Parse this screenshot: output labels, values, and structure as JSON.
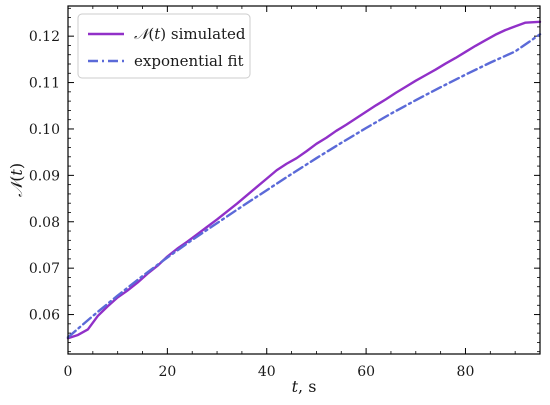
{
  "chart_data": {
    "type": "line",
    "xlabel": "t, s",
    "ylabel": "N(t)",
    "xlim": [
      0,
      95
    ],
    "ylim": [
      0.0515,
      0.1265
    ],
    "x_ticks": [
      0,
      20,
      40,
      60,
      80
    ],
    "x_tick_labels": [
      "0",
      "20",
      "40",
      "60",
      "80"
    ],
    "y_ticks": [
      0.06,
      0.07,
      0.08,
      0.09,
      0.1,
      0.11,
      0.12
    ],
    "y_tick_labels": [
      "0.06",
      "0.07",
      "0.08",
      "0.09",
      "0.10",
      "0.11",
      "0.12"
    ],
    "grid": false,
    "legend_position": "top-left",
    "series": [
      {
        "name": "N(t) simulated",
        "color": "#9130c8",
        "style": "solid",
        "x": [
          0,
          2,
          4,
          6,
          8,
          10,
          12,
          14,
          16,
          18,
          20,
          22,
          24,
          26,
          28,
          30,
          32,
          34,
          36,
          38,
          40,
          42,
          44,
          46,
          48,
          50,
          52,
          54,
          56,
          58,
          60,
          62,
          64,
          66,
          68,
          70,
          72,
          74,
          76,
          78,
          80,
          82,
          84,
          86,
          88,
          90,
          92,
          95
        ],
        "y": [
          0.0549,
          0.0556,
          0.0568,
          0.0597,
          0.0618,
          0.0637,
          0.0652,
          0.0669,
          0.0688,
          0.0705,
          0.0725,
          0.0742,
          0.0757,
          0.0773,
          0.0789,
          0.0805,
          0.0822,
          0.0839,
          0.0857,
          0.0875,
          0.0893,
          0.0911,
          0.0925,
          0.0937,
          0.0952,
          0.0968,
          0.0981,
          0.0996,
          0.1009,
          0.1023,
          0.1037,
          0.1051,
          0.1064,
          0.1078,
          0.1091,
          0.1104,
          0.1116,
          0.1128,
          0.1141,
          0.1153,
          0.1166,
          0.1179,
          0.1191,
          0.1203,
          0.1213,
          0.1221,
          0.1229,
          0.1231
        ]
      },
      {
        "name": "exponential fit",
        "color": "#5b6ad8",
        "style": "dashdot",
        "x": [
          0,
          5,
          10,
          15,
          20,
          25,
          30,
          35,
          40,
          45,
          50,
          55,
          60,
          65,
          70,
          75,
          80,
          85,
          90,
          95
        ],
        "y": [
          0.0551,
          0.0597,
          0.0641,
          0.0683,
          0.0723,
          0.0761,
          0.0797,
          0.0833,
          0.0868,
          0.0903,
          0.0937,
          0.097,
          0.1002,
          0.1033,
          0.1062,
          0.109,
          0.1117,
          0.1143,
          0.1167,
          0.1204
        ]
      }
    ]
  }
}
